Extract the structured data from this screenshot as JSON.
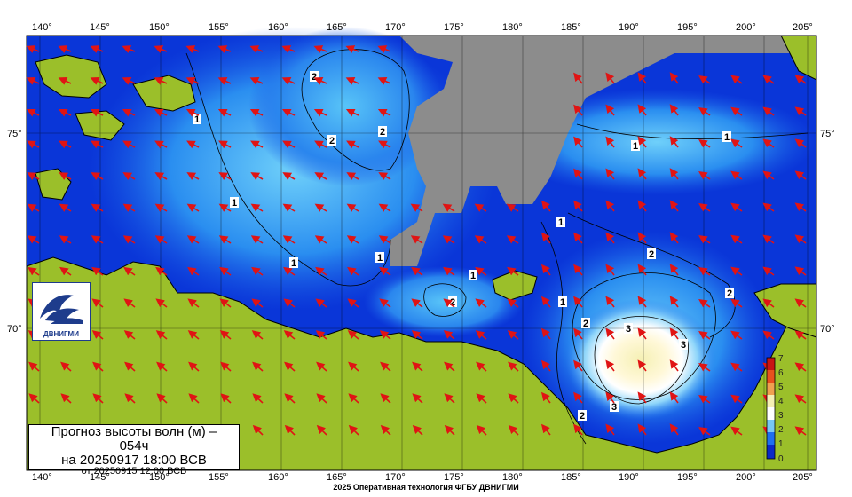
{
  "map": {
    "lon_labels": [
      "140°",
      "145°",
      "150°",
      "155°",
      "160°",
      "165°",
      "170°",
      "175°",
      "180°",
      "185°",
      "190°",
      "195°",
      "200°",
      "205°"
    ],
    "lat_labels": [
      "75°",
      "70°"
    ],
    "contour_labels": [
      "1",
      "1",
      "1",
      "1",
      "1",
      "1",
      "1",
      "1",
      "1",
      "1",
      "1",
      "2",
      "2",
      "2",
      "2",
      "2",
      "2",
      "2",
      "3",
      "3",
      "3"
    ]
  },
  "caption": {
    "line1": "Прогноз высоты волн (м) –",
    "line1b": "054ч",
    "line2": "на 20250917 18:00 ВСВ",
    "line3": "от 20250915 12:00 ВСВ"
  },
  "logo": {
    "text": "ДВНИГМИ"
  },
  "colorbar": {
    "ticks": [
      "7",
      "6",
      "5",
      "4",
      "3",
      "2",
      "1",
      "0"
    ],
    "colors": [
      "#c81414",
      "#e8501e",
      "#f0a050",
      "#f5f0b4",
      "#ffffff",
      "#78c8f5",
      "#1e6ef0",
      "#0a28c8"
    ]
  },
  "footer": {
    "text": "2025 Оперативная технология ФГБУ ДВНИГМИ"
  },
  "colors": {
    "land": "#9bbf2a",
    "ice": "#8c8c8c",
    "sea_low": "#0a32dc",
    "sea_mid": "#1e8cf0",
    "arrow": "#e01414"
  }
}
